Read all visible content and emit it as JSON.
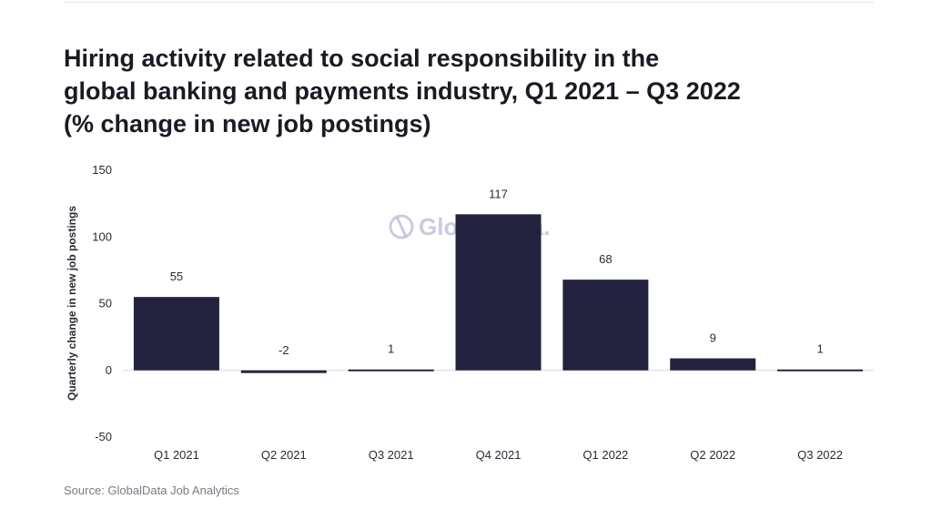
{
  "chart_data": {
    "type": "bar",
    "title": "Hiring activity related to social responsibility in the global banking and payments industry, Q1 2021 – Q3 2022 (% change in new job postings)",
    "title_lines": [
      "Hiring activity related to social responsibility in the",
      "global banking and payments industry, Q1 2021 – Q3 2022",
      "(% change in new job postings)"
    ],
    "ylabel": "Quarterly change in new job postings",
    "xlabel": "",
    "categories": [
      "Q1 2021",
      "Q2 2021",
      "Q3 2021",
      "Q4 2021",
      "Q1 2022",
      "Q2 2022",
      "Q3 2022"
    ],
    "values": [
      55,
      -2,
      1,
      117,
      68,
      9,
      1
    ],
    "data_labels": [
      "55",
      "-2",
      "1",
      "117",
      "68",
      "9",
      "1"
    ],
    "ylim": [
      -50,
      150
    ],
    "yticks": [
      150,
      100,
      50,
      0,
      -50
    ],
    "bar_color": "#23233f",
    "grid": false,
    "legend": "none",
    "source": "Source: GlobalData Job Analytics",
    "watermark": "GlobalData."
  }
}
